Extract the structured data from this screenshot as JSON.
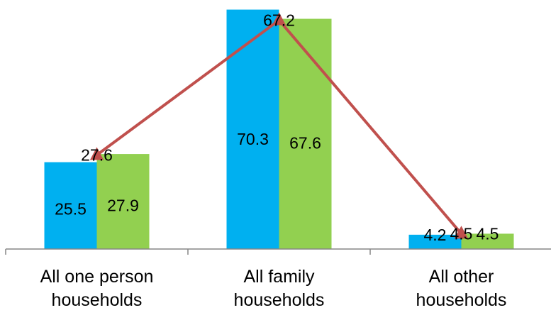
{
  "chart_data": {
    "type": "bar",
    "categories": [
      [
        "All one person",
        "households"
      ],
      [
        "All family",
        "households"
      ],
      [
        "All other",
        "households"
      ]
    ],
    "series": [
      {
        "values": [
          25.5,
          70.3,
          4.2
        ],
        "color": "#00b0f0",
        "kind": "bar"
      },
      {
        "values": [
          27.9,
          67.6,
          4.5
        ],
        "color": "#92d050",
        "kind": "bar"
      },
      {
        "values": [
          27.6,
          67.2,
          4.5
        ],
        "color": "#c0504d",
        "kind": "line"
      }
    ],
    "ylim": [
      0,
      72
    ],
    "grid": false,
    "legend": "none"
  }
}
